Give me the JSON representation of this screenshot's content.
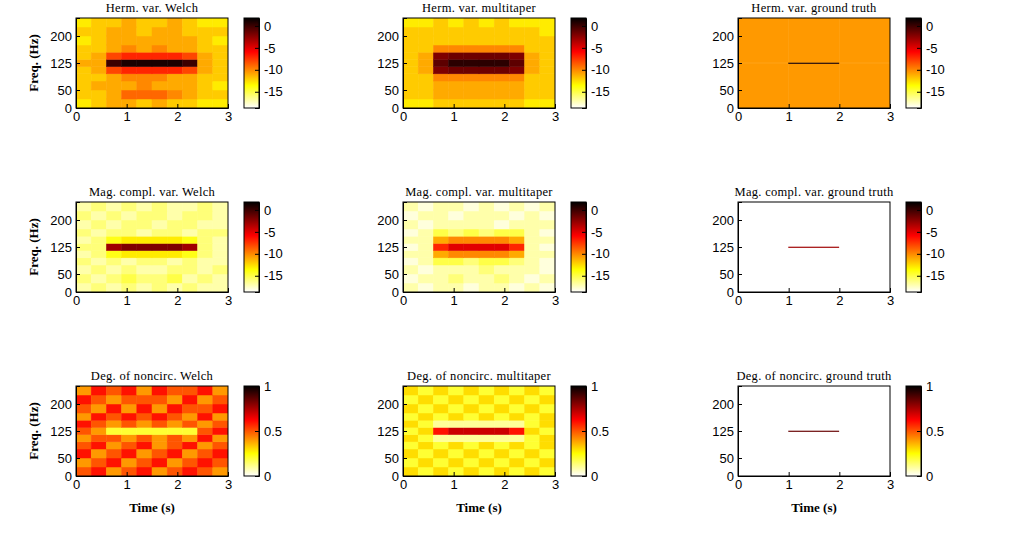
{
  "chart_data": [
    {
      "type": "heatmap",
      "title": "Herm. var. Welch",
      "ylabel": "Freq. (Hz)",
      "xlim": [
        0,
        3
      ],
      "ylim": [
        0,
        250
      ],
      "xticks": [
        0,
        1,
        2,
        3
      ],
      "yticks": [
        0,
        50,
        125,
        200
      ],
      "x_edges": [
        0,
        0.3,
        0.6,
        0.9,
        1.2,
        1.5,
        1.8,
        2.1,
        2.4,
        2.7,
        3
      ],
      "y_edges": [
        0,
        25,
        50,
        75,
        95,
        115,
        135,
        155,
        175,
        200,
        225,
        250
      ],
      "cells": [
        [
          -13,
          -12,
          -11,
          -11,
          -12,
          -11,
          -12,
          -12,
          -13,
          -13
        ],
        [
          -12,
          -12,
          -11,
          -9,
          -9,
          -9,
          -10,
          -11,
          -12,
          -12
        ],
        [
          -12,
          -11,
          -11,
          -11,
          -10,
          -11,
          -11,
          -11,
          -12,
          -13
        ],
        [
          -12,
          -12,
          -11,
          -10,
          -10,
          -10,
          -11,
          -11,
          -12,
          -12
        ],
        [
          -12,
          -11,
          -8,
          -7,
          -7,
          -7,
          -7,
          -8,
          -11,
          -12
        ],
        [
          -11,
          -11,
          0,
          1,
          1,
          1,
          1,
          0,
          -11,
          -12
        ],
        [
          -12,
          -11,
          -8,
          -7,
          -7,
          -7,
          -7,
          -8,
          -11,
          -12
        ],
        [
          -12,
          -12,
          -11,
          -10,
          -11,
          -10,
          -11,
          -11,
          -12,
          -12
        ],
        [
          -13,
          -12,
          -11,
          -11,
          -11,
          -11,
          -11,
          -11,
          -12,
          -13
        ],
        [
          -12,
          -12,
          -11,
          -11,
          -12,
          -11,
          -11,
          -12,
          -12,
          -12
        ],
        [
          -13,
          -12,
          -12,
          -11,
          -12,
          -12,
          -11,
          -12,
          -13,
          -13
        ]
      ],
      "colorbar_range": [
        -18.7,
        1.8
      ],
      "colorbar_ticks": [
        0,
        -5,
        -10,
        -15
      ]
    },
    {
      "type": "heatmap",
      "title": "Herm. var. multitaper",
      "xlim": [
        0,
        3
      ],
      "ylim": [
        0,
        250
      ],
      "xticks": [
        0,
        1,
        2,
        3
      ],
      "yticks": [
        0,
        50,
        125,
        200
      ],
      "x_edges": [
        0,
        0.3,
        0.6,
        0.9,
        1.2,
        1.5,
        1.8,
        2.1,
        2.4,
        2.7,
        3
      ],
      "y_edges": [
        0,
        25,
        50,
        75,
        95,
        115,
        135,
        155,
        175,
        200,
        225,
        250
      ],
      "cells": [
        [
          -13,
          -13,
          -12,
          -12,
          -12,
          -12,
          -12,
          -12,
          -13,
          -13
        ],
        [
          -12,
          -12,
          -11,
          -11,
          -11,
          -11,
          -11,
          -11,
          -12,
          -12
        ],
        [
          -12,
          -12,
          -11,
          -11,
          -11,
          -11,
          -11,
          -11,
          -12,
          -12
        ],
        [
          -12,
          -12,
          -10,
          -10,
          -10,
          -10,
          -10,
          -10,
          -12,
          -12
        ],
        [
          -12,
          -11,
          -2,
          -1.5,
          -1.5,
          -1.5,
          -1.5,
          -2,
          -11,
          -12
        ],
        [
          -12,
          -11,
          -1,
          0.5,
          0.5,
          0.5,
          0.5,
          -1,
          -11,
          -12
        ],
        [
          -12,
          -11,
          -2,
          -1.5,
          -1.5,
          -1.5,
          -1.5,
          -2,
          -11,
          -12
        ],
        [
          -12,
          -12,
          -10,
          -10,
          -10,
          -10,
          -10,
          -10,
          -12,
          -12
        ],
        [
          -12,
          -12,
          -12,
          -12,
          -12,
          -12,
          -12,
          -12,
          -12,
          -12
        ],
        [
          -12,
          -12,
          -12,
          -12,
          -12,
          -12,
          -12,
          -12,
          -12,
          -13
        ],
        [
          -13,
          -13,
          -12,
          -13,
          -12,
          -13,
          -12,
          -13,
          -13,
          -13
        ]
      ],
      "colorbar_range": [
        -18.7,
        1.8
      ],
      "colorbar_ticks": [
        0,
        -5,
        -10,
        -15
      ]
    },
    {
      "type": "heatmap",
      "title": "Herm. var. ground truth",
      "xlim": [
        0,
        3
      ],
      "ylim": [
        0,
        250
      ],
      "xticks": [
        0,
        1,
        2,
        3
      ],
      "yticks": [
        0,
        50,
        125,
        200
      ],
      "x_edges": [
        0,
        1,
        2,
        3
      ],
      "y_edges": [
        0,
        123,
        127,
        250
      ],
      "cells": [
        [
          -10.5,
          -10.5,
          -10.5
        ],
        [
          -10.5,
          1,
          -10.5
        ],
        [
          -10.5,
          -10.5,
          -10.5
        ]
      ],
      "colorbar_range": [
        -18.7,
        1.8
      ],
      "colorbar_ticks": [
        0,
        -5,
        -10,
        -15
      ]
    },
    {
      "type": "heatmap",
      "title": "Mag. compl. var. Welch",
      "ylabel": "Freq. (Hz)",
      "xlim": [
        0,
        3
      ],
      "ylim": [
        0,
        250
      ],
      "xticks": [
        0,
        1,
        2,
        3
      ],
      "yticks": [
        0,
        50,
        125,
        200
      ],
      "x_edges": [
        0,
        0.3,
        0.6,
        0.9,
        1.2,
        1.5,
        1.8,
        2.1,
        2.4,
        2.7,
        3
      ],
      "y_edges": [
        0,
        25,
        50,
        75,
        95,
        115,
        135,
        155,
        175,
        200,
        225,
        250
      ],
      "cells": [
        [
          -17,
          -16,
          -17,
          -16,
          -17,
          -16,
          -17,
          -16,
          -17,
          -17
        ],
        [
          -16,
          -17,
          -16,
          -15,
          -16,
          -16,
          -15,
          -17,
          -16,
          -17
        ],
        [
          -17,
          -16,
          -17,
          -16,
          -17,
          -17,
          -16,
          -16,
          -17,
          -16
        ],
        [
          -16,
          -17,
          -16,
          -17,
          -16,
          -16,
          -17,
          -16,
          -17,
          -17
        ],
        [
          -17,
          -16,
          -14,
          -13,
          -13,
          -13,
          -13,
          -14,
          -16,
          -17
        ],
        [
          -16,
          -16,
          -3,
          -2,
          -2,
          -2,
          -2,
          -3,
          -16,
          -17
        ],
        [
          -17,
          -16,
          -14,
          -13,
          -13,
          -13,
          -13,
          -14,
          -16,
          -17
        ],
        [
          -16,
          -17,
          -16,
          -16,
          -17,
          -16,
          -16,
          -17,
          -16,
          -16
        ],
        [
          -17,
          -16,
          -17,
          -16,
          -16,
          -17,
          -16,
          -16,
          -17,
          -17
        ],
        [
          -16,
          -17,
          -16,
          -17,
          -16,
          -16,
          -17,
          -16,
          -16,
          -17
        ],
        [
          -17,
          -16,
          -17,
          -16,
          -17,
          -16,
          -17,
          -17,
          -16,
          -17
        ]
      ],
      "colorbar_range": [
        -18.7,
        1.8
      ],
      "colorbar_ticks": [
        0,
        -5,
        -10,
        -15
      ]
    },
    {
      "type": "heatmap",
      "title": "Mag. compl. var. multitaper",
      "xlim": [
        0,
        3
      ],
      "ylim": [
        0,
        250
      ],
      "xticks": [
        0,
        1,
        2,
        3
      ],
      "yticks": [
        0,
        50,
        125,
        200
      ],
      "x_edges": [
        0,
        0.3,
        0.6,
        0.9,
        1.2,
        1.5,
        1.8,
        2.1,
        2.4,
        2.7,
        3
      ],
      "y_edges": [
        0,
        25,
        50,
        75,
        95,
        115,
        135,
        155,
        175,
        200,
        225,
        250
      ],
      "cells": [
        [
          -17,
          -18,
          -17,
          -17,
          -18,
          -17,
          -17,
          -18,
          -17,
          -18
        ],
        [
          -18,
          -17,
          -17,
          -16,
          -17,
          -17,
          -16,
          -17,
          -18,
          -17
        ],
        [
          -17,
          -18,
          -17,
          -17,
          -17,
          -16,
          -17,
          -17,
          -17,
          -18
        ],
        [
          -18,
          -17,
          -15,
          -15,
          -16,
          -15,
          -15,
          -16,
          -17,
          -18
        ],
        [
          -17,
          -17,
          -11,
          -10,
          -10,
          -10,
          -10,
          -11,
          -17,
          -17
        ],
        [
          -18,
          -17,
          -7,
          -5,
          -5,
          -5,
          -5,
          -7,
          -17,
          -18
        ],
        [
          -17,
          -17,
          -11,
          -10,
          -10,
          -10,
          -10,
          -11,
          -17,
          -17
        ],
        [
          -18,
          -17,
          -15,
          -16,
          -15,
          -16,
          -15,
          -15,
          -17,
          -18
        ],
        [
          -17,
          -18,
          -17,
          -17,
          -17,
          -17,
          -18,
          -17,
          -17,
          -17
        ],
        [
          -18,
          -17,
          -17,
          -18,
          -17,
          -17,
          -17,
          -18,
          -17,
          -18
        ],
        [
          -17,
          -18,
          -17,
          -17,
          -18,
          -17,
          -18,
          -17,
          -18,
          -17
        ]
      ],
      "colorbar_range": [
        -18.7,
        1.8
      ],
      "colorbar_ticks": [
        0,
        -5,
        -10,
        -15
      ]
    },
    {
      "type": "heatmap",
      "title": "Mag. compl. var. ground truth",
      "xlim": [
        0,
        3
      ],
      "ylim": [
        0,
        250
      ],
      "xticks": [
        0,
        1,
        2,
        3
      ],
      "yticks": [
        0,
        50,
        125,
        200
      ],
      "x_edges": [
        0,
        1,
        2,
        3
      ],
      "y_edges": [
        0,
        123,
        127,
        250
      ],
      "cells": [
        [
          -18.7,
          -18.7,
          -18.7
        ],
        [
          -18.7,
          -3,
          -18.7
        ],
        [
          -18.7,
          -18.7,
          -18.7
        ]
      ],
      "colorbar_range": [
        -18.7,
        1.8
      ],
      "colorbar_ticks": [
        0,
        -5,
        -10,
        -15
      ]
    },
    {
      "type": "heatmap",
      "title": "Deg. of noncirc. Welch",
      "ylabel": "Freq. (Hz)",
      "xlabel": "Time (s)",
      "xlim": [
        0,
        3
      ],
      "ylim": [
        0,
        250
      ],
      "xticks": [
        0,
        1,
        2,
        3
      ],
      "yticks": [
        0,
        50,
        125,
        200
      ],
      "x_edges": [
        0,
        0.3,
        0.6,
        0.9,
        1.2,
        1.5,
        1.8,
        2.1,
        2.4,
        2.7,
        3
      ],
      "y_edges": [
        0,
        25,
        50,
        75,
        95,
        115,
        135,
        155,
        175,
        200,
        225,
        250
      ],
      "cells": [
        [
          0.5,
          0.6,
          0.4,
          0.5,
          0.6,
          0.4,
          0.5,
          0.6,
          0.5,
          0.4
        ],
        [
          0.4,
          0.5,
          0.6,
          0.4,
          0.5,
          0.6,
          0.4,
          0.5,
          0.6,
          0.5
        ],
        [
          0.6,
          0.4,
          0.5,
          0.6,
          0.4,
          0.5,
          0.6,
          0.4,
          0.5,
          0.6
        ],
        [
          0.5,
          0.6,
          0.4,
          0.5,
          0.6,
          0.4,
          0.5,
          0.6,
          0.4,
          0.5
        ],
        [
          0.4,
          0.5,
          0.5,
          0.4,
          0.5,
          0.4,
          0.5,
          0.4,
          0.6,
          0.4
        ],
        [
          0.5,
          0.4,
          0.2,
          0.2,
          0.2,
          0.2,
          0.2,
          0.2,
          0.5,
          0.6
        ],
        [
          0.6,
          0.5,
          0.4,
          0.5,
          0.4,
          0.5,
          0.4,
          0.5,
          0.4,
          0.5
        ],
        [
          0.4,
          0.6,
          0.5,
          0.6,
          0.5,
          0.6,
          0.5,
          0.4,
          0.6,
          0.4
        ],
        [
          0.5,
          0.4,
          0.6,
          0.4,
          0.6,
          0.4,
          0.6,
          0.5,
          0.5,
          0.6
        ],
        [
          0.6,
          0.5,
          0.4,
          0.5,
          0.5,
          0.5,
          0.4,
          0.6,
          0.4,
          0.5
        ],
        [
          0.4,
          0.6,
          0.5,
          0.6,
          0.4,
          0.6,
          0.5,
          0.5,
          0.6,
          0.4
        ]
      ],
      "colorbar_range": [
        0,
        1
      ],
      "colorbar_ticks": [
        0,
        0.5,
        1
      ]
    },
    {
      "type": "heatmap",
      "title": "Deg. of noncirc. multitaper",
      "xlabel": "Time (s)",
      "xlim": [
        0,
        3
      ],
      "ylim": [
        0,
        250
      ],
      "xticks": [
        0,
        1,
        2,
        3
      ],
      "yticks": [
        0,
        50,
        125,
        200
      ],
      "x_edges": [
        0,
        0.3,
        0.6,
        0.9,
        1.2,
        1.5,
        1.8,
        2.1,
        2.4,
        2.7,
        3
      ],
      "y_edges": [
        0,
        25,
        50,
        75,
        95,
        115,
        135,
        155,
        175,
        200,
        225,
        250
      ],
      "cells": [
        [
          0.3,
          0.2,
          0.3,
          0.2,
          0.3,
          0.2,
          0.3,
          0.2,
          0.3,
          0.2
        ],
        [
          0.2,
          0.3,
          0.2,
          0.3,
          0.2,
          0.3,
          0.2,
          0.3,
          0.2,
          0.3
        ],
        [
          0.3,
          0.2,
          0.3,
          0.2,
          0.3,
          0.2,
          0.3,
          0.2,
          0.3,
          0.2
        ],
        [
          0.2,
          0.3,
          0.2,
          0.3,
          0.2,
          0.3,
          0.2,
          0.3,
          0.2,
          0.3
        ],
        [
          0.3,
          0.2,
          0.1,
          0.1,
          0.1,
          0.1,
          0.1,
          0.1,
          0.2,
          0.3
        ],
        [
          0.2,
          0.3,
          0.6,
          0.7,
          0.7,
          0.7,
          0.7,
          0.6,
          0.3,
          0.2
        ],
        [
          0.3,
          0.2,
          0.1,
          0.1,
          0.1,
          0.1,
          0.1,
          0.1,
          0.2,
          0.3
        ],
        [
          0.2,
          0.3,
          0.2,
          0.3,
          0.2,
          0.3,
          0.2,
          0.3,
          0.2,
          0.3
        ],
        [
          0.3,
          0.2,
          0.3,
          0.2,
          0.3,
          0.2,
          0.3,
          0.2,
          0.3,
          0.2
        ],
        [
          0.2,
          0.3,
          0.2,
          0.3,
          0.2,
          0.3,
          0.2,
          0.3,
          0.2,
          0.3
        ],
        [
          0.3,
          0.2,
          0.3,
          0.2,
          0.3,
          0.2,
          0.3,
          0.2,
          0.3,
          0.2
        ]
      ],
      "colorbar_range": [
        0,
        1
      ],
      "colorbar_ticks": [
        0,
        0.5,
        1
      ]
    },
    {
      "type": "heatmap",
      "title": "Deg. of noncirc. ground truth",
      "xlabel": "Time (s)",
      "xlim": [
        0,
        3
      ],
      "ylim": [
        0,
        250
      ],
      "xticks": [
        0,
        1,
        2,
        3
      ],
      "yticks": [
        0,
        50,
        125,
        200
      ],
      "x_edges": [
        0,
        1,
        2,
        3
      ],
      "y_edges": [
        0,
        123,
        127,
        250
      ],
      "cells": [
        [
          0,
          0,
          0
        ],
        [
          0,
          0.85,
          0
        ],
        [
          0,
          0,
          0
        ]
      ],
      "colorbar_range": [
        0,
        1
      ],
      "colorbar_ticks": [
        0,
        0.5,
        1
      ]
    }
  ]
}
